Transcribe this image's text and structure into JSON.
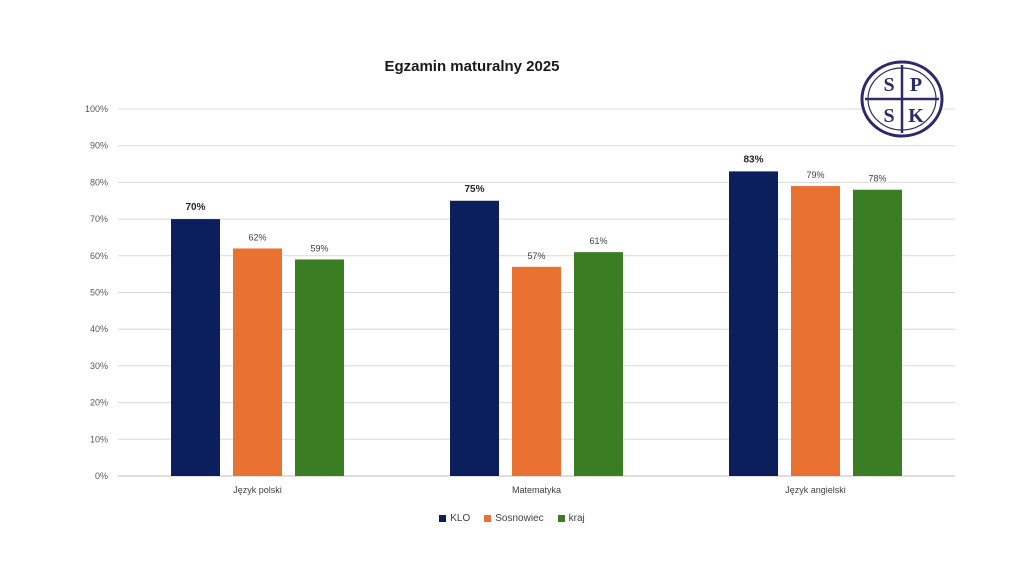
{
  "chart_data": {
    "type": "bar",
    "title": "Egzamin maturalny 2025",
    "categories": [
      "Język polski",
      "Matematyka",
      "Język angielski"
    ],
    "series": [
      {
        "name": "KLO",
        "values": [
          70,
          75,
          83
        ],
        "color": "#0a1f5c",
        "labels": [
          "70%",
          "75%",
          "83%"
        ]
      },
      {
        "name": "Sosnowiec",
        "values": [
          62,
          57,
          79
        ],
        "color": "#e97132",
        "labels": [
          "62%",
          "57%",
          "79%"
        ]
      },
      {
        "name": "kraj",
        "values": [
          59,
          61,
          78
        ],
        "color": "#3a7d22",
        "labels": [
          "59%",
          "61%",
          "78%"
        ]
      }
    ],
    "ylim": [
      0,
      100
    ],
    "yticks": [
      "0%",
      "10%",
      "20%",
      "30%",
      "40%",
      "50%",
      "60%",
      "70%",
      "80%",
      "90%",
      "100%"
    ],
    "grid": true,
    "legend_position": "bottom"
  },
  "logo": {
    "letters": [
      "S",
      "P",
      "S",
      "K"
    ],
    "color": "#2b2a6b"
  }
}
